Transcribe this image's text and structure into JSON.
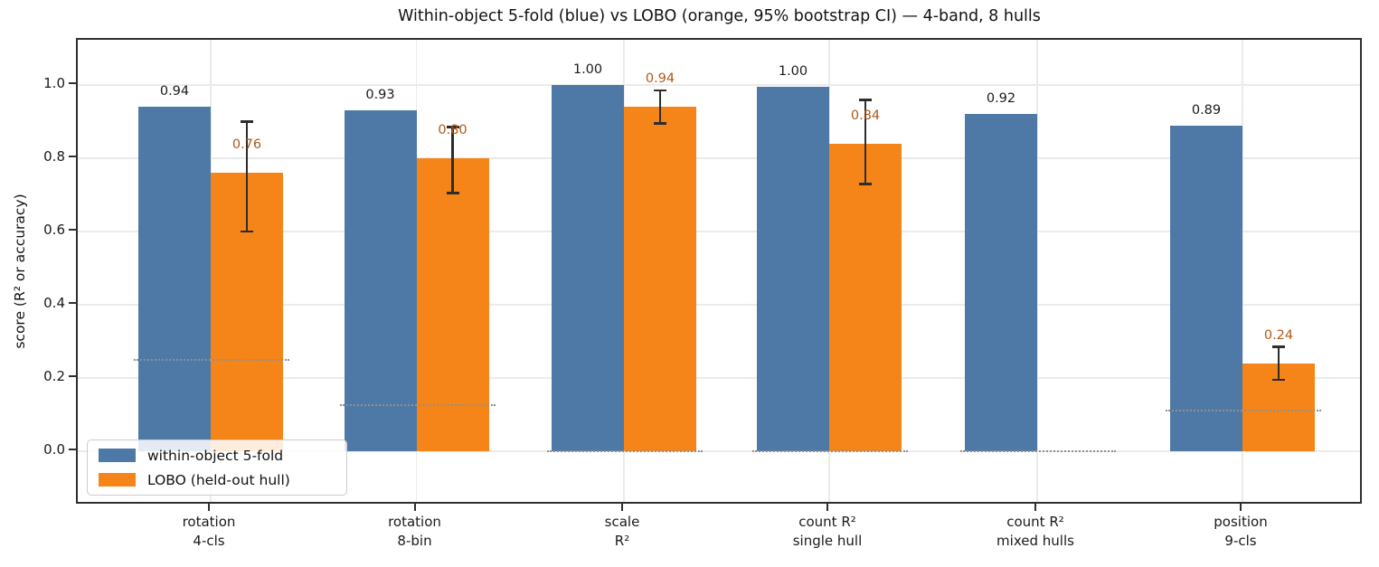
{
  "chart_data": {
    "type": "bar",
    "title": "Within-object 5-fold (blue) vs LOBO (orange, 95% bootstrap CI) — 4-band, 8 hulls",
    "ylabel": "score (R² or accuracy)",
    "categories": [
      {
        "line1": "rotation",
        "line2": "4-cls"
      },
      {
        "line1": "rotation",
        "line2": "8-bin"
      },
      {
        "line1": "scale",
        "line2": "R²"
      },
      {
        "line1": "count R²",
        "line2": "single hull"
      },
      {
        "line1": "count R²",
        "line2": "mixed hulls"
      },
      {
        "line1": "position",
        "line2": "9-cls"
      }
    ],
    "series": [
      {
        "name": "within-object 5-fold",
        "color": "#4e79a7",
        "label_color": "#1a1a1a",
        "values": [
          0.94,
          0.93,
          1.0,
          0.995,
          0.92,
          0.89
        ],
        "labels": [
          "0.94",
          "0.93",
          "1.00",
          "1.00",
          "0.92",
          "0.89"
        ]
      },
      {
        "name": "LOBO (held-out hull)",
        "color": "#f58518",
        "label_color": "#b05a17",
        "values": [
          0.76,
          0.8,
          0.94,
          0.84,
          null,
          0.24
        ],
        "labels": [
          "0.76",
          "0.80",
          "0.94",
          "0.84",
          null,
          "0.24"
        ],
        "ci_low": [
          0.6,
          0.705,
          0.895,
          0.73,
          null,
          0.195
        ],
        "ci_high": [
          0.9,
          0.885,
          0.985,
          0.96,
          null,
          0.285
        ]
      }
    ],
    "chance_baselines": [
      0.25,
      0.125,
      0.0,
      0.0,
      0.0,
      0.111
    ],
    "yticks": [
      0.0,
      0.2,
      0.4,
      0.6,
      0.8,
      1.0
    ],
    "ylim": [
      -0.1485,
      1.1238
    ],
    "grid": true,
    "legend_position": "lower left",
    "errorbar_color": "#2d2d2d",
    "baseline_color": "#909090"
  }
}
